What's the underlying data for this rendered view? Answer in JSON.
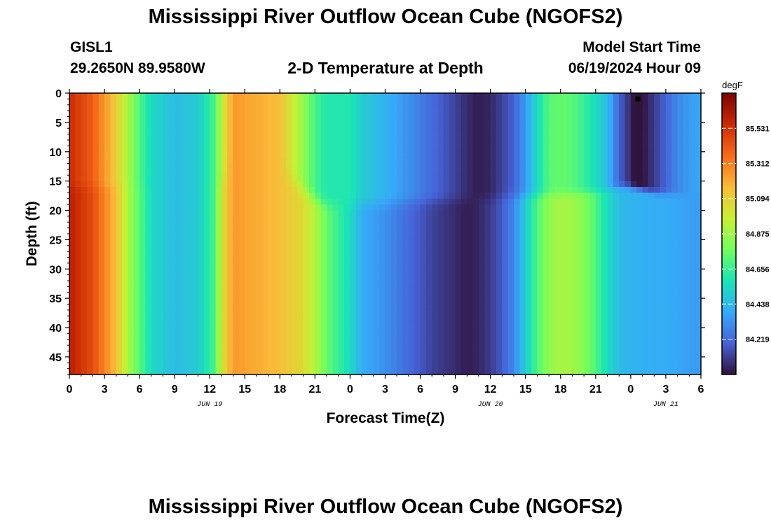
{
  "title": "Mississippi River Outflow Ocean Cube (NGOFS2)",
  "station": {
    "id": "GISL1",
    "coords": "29.2650N  89.9580W"
  },
  "subtitle": "2-D Temperature at Depth",
  "model_start": {
    "label": "Model Start Time",
    "value": "06/19/2024 Hour 09"
  },
  "footer_title": "Mississippi River Outflow Ocean Cube (NGOFS2)",
  "colors": {
    "colormap": [
      "#30123b",
      "#4662d7",
      "#36aaf9",
      "#1ae4b6",
      "#72fe5e",
      "#c8ef34",
      "#faba39",
      "#f66b19",
      "#ca2a04",
      "#7a0403"
    ]
  },
  "chart_data": {
    "type": "heatmap",
    "xlabel": "Forecast Time(Z)",
    "ylabel": "Depth (ft)",
    "x_range_hours": [
      0,
      54
    ],
    "ylim": [
      0,
      48
    ],
    "y_reversed": true,
    "x_ticks": [
      "0",
      "3",
      "6",
      "9",
      "12",
      "15",
      "18",
      "21",
      "0",
      "3",
      "6",
      "9",
      "12",
      "15",
      "18",
      "21",
      "0",
      "3",
      "6"
    ],
    "y_ticks": [
      "0",
      "5",
      "10",
      "15",
      "20",
      "25",
      "30",
      "35",
      "40",
      "45"
    ],
    "date_labels": [
      {
        "text": "JUN 19",
        "hour": 12
      },
      {
        "text": "JUN 20",
        "hour": 36
      },
      {
        "text": "JUN 21",
        "hour": 51
      }
    ],
    "colorbar": {
      "unit": "degF",
      "range": [
        84.0,
        85.75
      ],
      "ticks": [
        "85.531",
        "85.312",
        "85.094",
        "84.875",
        "84.656",
        "84.438",
        "84.219"
      ],
      "tick_values": [
        85.531,
        85.312,
        85.094,
        84.875,
        84.656,
        84.438,
        84.219
      ]
    },
    "surface_profile": {
      "hours": [
        0,
        2,
        4,
        5,
        6,
        7,
        9,
        11,
        12.5,
        13,
        14,
        16,
        18,
        19,
        20,
        21,
        22,
        24,
        25,
        27,
        29,
        31,
        33,
        34,
        35,
        36,
        37,
        38,
        39,
        40,
        41,
        42,
        43,
        44,
        45,
        46,
        47,
        48,
        48.3,
        49,
        50,
        51,
        52,
        53,
        54
      ],
      "values": [
        85.55,
        85.4,
        85.1,
        84.9,
        84.7,
        84.55,
        84.45,
        84.5,
        84.7,
        84.95,
        85.25,
        85.2,
        85.15,
        85.0,
        84.85,
        84.68,
        84.6,
        84.6,
        84.5,
        84.42,
        84.32,
        84.22,
        84.12,
        84.06,
        84.03,
        84.05,
        84.12,
        84.2,
        84.35,
        84.55,
        84.72,
        84.75,
        84.72,
        84.65,
        84.55,
        84.45,
        84.2,
        84.05,
        84.0,
        84.0,
        84.1,
        84.2,
        84.3,
        84.35,
        84.38
      ]
    },
    "deep_profile": {
      "hours": [
        0,
        2,
        4,
        5,
        6,
        7,
        9,
        11,
        12.5,
        13,
        14,
        16,
        18,
        20,
        21,
        22,
        24,
        25,
        27,
        29,
        31,
        33,
        34,
        35,
        36,
        37,
        38,
        39,
        40,
        41,
        42,
        43,
        44,
        45,
        46,
        47,
        48,
        49,
        50,
        51,
        52,
        53,
        54
      ],
      "values": [
        85.6,
        85.45,
        85.15,
        84.9,
        84.72,
        84.55,
        84.45,
        84.5,
        84.7,
        85.0,
        85.25,
        85.2,
        85.15,
        85.05,
        84.92,
        84.75,
        84.55,
        84.4,
        84.32,
        84.22,
        84.12,
        84.06,
        84.03,
        84.05,
        84.1,
        84.18,
        84.3,
        84.5,
        84.7,
        84.85,
        84.9,
        84.88,
        84.82,
        84.7,
        84.55,
        84.45,
        84.42,
        84.41,
        84.4,
        84.4,
        84.38,
        84.36,
        84.35
      ]
    },
    "thermocline": {
      "hours": [
        0,
        12,
        13,
        14,
        16,
        18,
        19,
        20,
        21,
        22,
        25,
        44,
        46,
        47,
        48,
        50,
        54
      ],
      "depth_ft": [
        16,
        16,
        15,
        13,
        13,
        13.5,
        15,
        16.5,
        18,
        19,
        19,
        17,
        16.5,
        16,
        16,
        17,
        17.5
      ],
      "half_width_ft": [
        1.2,
        1.2,
        2,
        3,
        3.5,
        3.5,
        3,
        2.5,
        2,
        2,
        2,
        1.2,
        1,
        1,
        1,
        1,
        1
      ]
    },
    "marker": {
      "hour": 48.6,
      "depth_ft": 1
    }
  }
}
